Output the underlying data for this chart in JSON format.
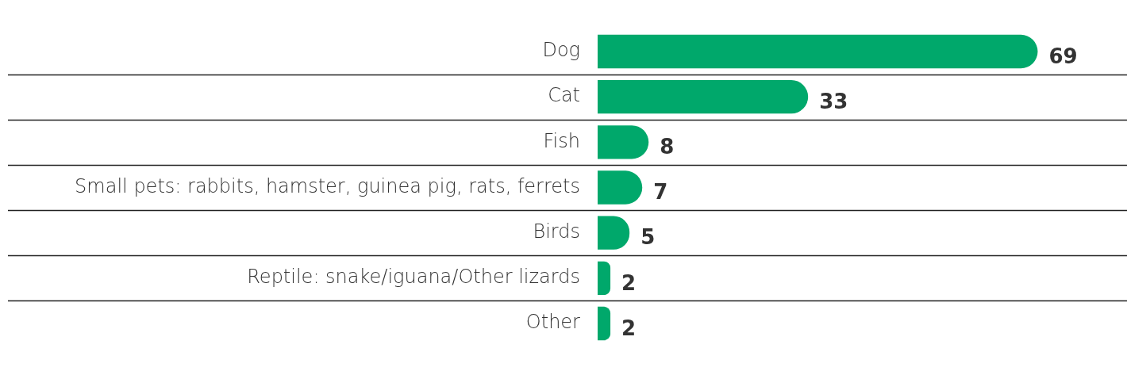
{
  "chart_data": {
    "type": "bar",
    "orientation": "horizontal",
    "categories": [
      "Dog",
      "Cat",
      "Fish",
      "Small pets: rabbits, hamster, guinea pig, rats, ferrets",
      "Birds",
      "Reptile: snake/iguana/Other lizards",
      "Other"
    ],
    "values": [
      69,
      33,
      8,
      7,
      5,
      2,
      2
    ],
    "color": "#00a86b",
    "xlim": [
      0,
      83
    ],
    "data_labels": true,
    "grid": "y",
    "tick_labels": "y",
    "legend": false
  }
}
